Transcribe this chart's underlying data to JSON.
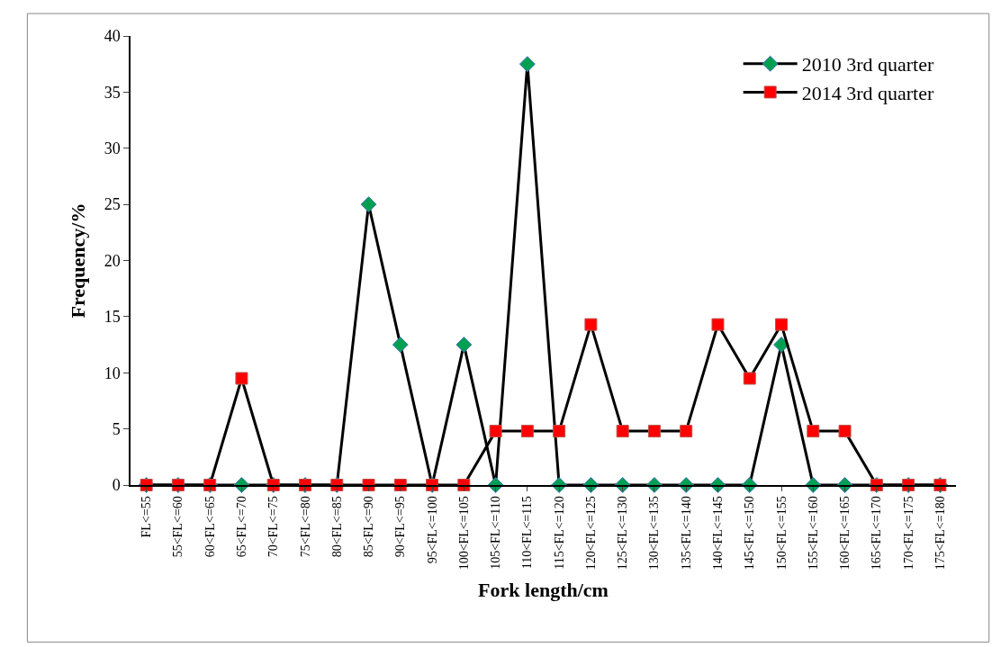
{
  "chart_data": {
    "type": "line",
    "xlabel": "Fork length/cm",
    "ylabel": "Frequency/%",
    "categories": [
      "FL<=55",
      "55<FL<=60",
      "60<FL<=65",
      "65<FL<=70",
      "70<FL<=75",
      "75<FL<=80",
      "80<FL<=85",
      "85<FL<=90",
      "90<FL<=95",
      "95<FL<=100",
      "100<FL<=105",
      "105<FL<=110",
      "110<FL<=115",
      "115<FL<=120",
      "120<FL<=125",
      "125<FL<=130",
      "130<FL<=135",
      "135<FL<=140",
      "140<FL<=145",
      "145<FL<=150",
      "150<FL<=155",
      "155<FL<=160",
      "160<FL<=165",
      "165<FL<=170",
      "170<FL<=175",
      "175<FL<=180"
    ],
    "series": [
      {
        "name": "2010 3rd quarter",
        "color": "#00a050",
        "marker": "diamond",
        "values": [
          0,
          0,
          0,
          0,
          0,
          0,
          0,
          25,
          12.5,
          0,
          12.5,
          0,
          37.5,
          0,
          0,
          0,
          0,
          0,
          0,
          0,
          12.5,
          0,
          0,
          0,
          0,
          0
        ]
      },
      {
        "name": "2014 3rd quarter",
        "color": "#ff0000",
        "marker": "square",
        "values": [
          0,
          0,
          0,
          9.5,
          0,
          0,
          0,
          0,
          0,
          0,
          0,
          4.8,
          4.8,
          4.8,
          14.3,
          4.8,
          4.8,
          4.8,
          14.3,
          9.5,
          14.3,
          4.8,
          4.8,
          0,
          0,
          0
        ]
      }
    ],
    "ylim": [
      0,
      40
    ],
    "yticks": [
      0,
      5,
      10,
      15,
      20,
      25,
      30,
      35,
      40
    ],
    "legend": "top right",
    "line_style": "solid"
  }
}
